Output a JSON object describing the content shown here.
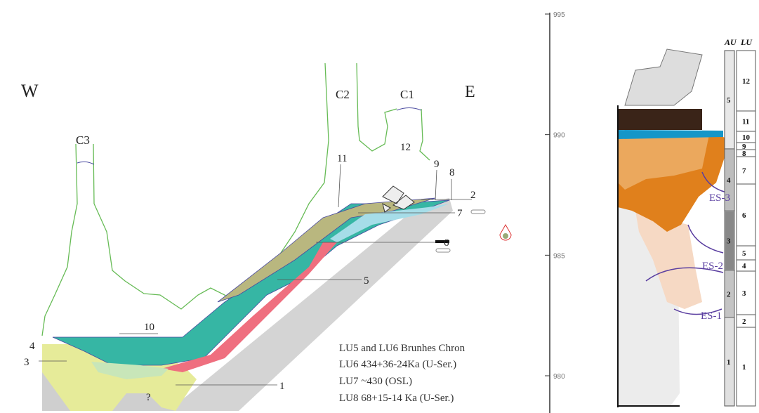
{
  "section": {
    "west": "W",
    "east": "E",
    "caves": [
      "C3",
      "C2",
      "C1"
    ],
    "units": [
      "12",
      "11",
      "9",
      "8",
      "2",
      "7",
      "6",
      "5",
      "10",
      "4",
      "3",
      "1",
      "?"
    ],
    "notes": [
      "LU5 and LU6 Brunhes Chron",
      "LU6 434+36-24Ka (U-Ser.)",
      "LU7 ~430 (OSL)",
      "LU8 68+15-14 Ka (U-Ser.)"
    ]
  },
  "scale": {
    "ticks": [
      995,
      990,
      985,
      980
    ]
  },
  "column": {
    "au_header": "AU",
    "lu_header": "LU",
    "au": [
      "5",
      "4",
      "3",
      "2",
      "1"
    ],
    "lu": [
      "12",
      "11",
      "10",
      "9",
      "8",
      "7",
      "6",
      "5",
      "4",
      "3",
      "2",
      "1"
    ],
    "surfaces": [
      "ES-3",
      "ES-2",
      "ES-1"
    ]
  }
}
